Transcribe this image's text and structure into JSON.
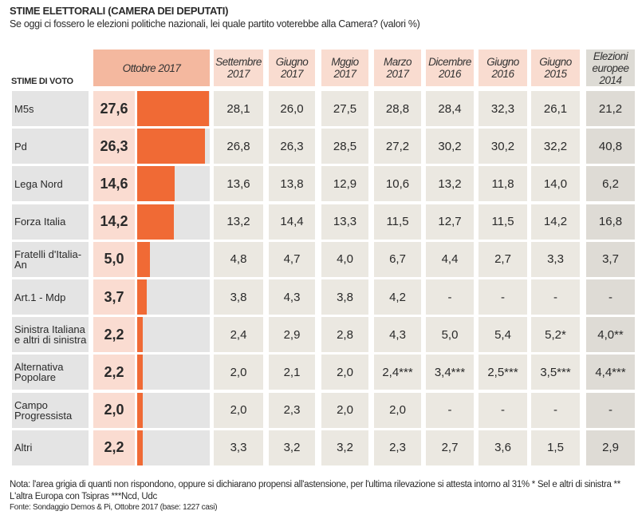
{
  "title": "STIME ELETTORALI (CAMERA DEI DEPUTATI)",
  "subtitle": "Se oggi ci fossero le elezioni politiche nazionali, lei quale partito voterebbe alla Camera? (valori %)",
  "row_header": "STIME DI VOTO",
  "chart_data": {
    "type": "table",
    "bar_color": "#f06a35",
    "columns": [
      "Ottobre 2017",
      "Settembre 2017",
      "Giugno 2017",
      "Mggio 2017",
      "Marzo 2017",
      "Dicembre 2016",
      "Giugno 2016",
      "Giugno 2015",
      "Elezioni europee 2014"
    ],
    "rows": [
      {
        "party": "M5s",
        "values": [
          "27,6",
          "28,1",
          "26,0",
          "27,5",
          "28,8",
          "28,4",
          "32,3",
          "26,1",
          "21,2"
        ],
        "bar": 27.6
      },
      {
        "party": "Pd",
        "values": [
          "26,3",
          "26,8",
          "26,3",
          "28,5",
          "27,2",
          "30,2",
          "30,2",
          "32,2",
          "40,8"
        ],
        "bar": 26.3
      },
      {
        "party": "Lega Nord",
        "values": [
          "14,6",
          "13,6",
          "13,8",
          "12,9",
          "10,6",
          "13,2",
          "11,8",
          "14,0",
          "6,2"
        ],
        "bar": 14.6
      },
      {
        "party": "Forza Italia",
        "values": [
          "14,2",
          "13,2",
          "14,4",
          "13,3",
          "11,5",
          "12,7",
          "11,5",
          "14,2",
          "16,8"
        ],
        "bar": 14.2
      },
      {
        "party": "Fratelli d'Italia-An",
        "values": [
          "5,0",
          "4,8",
          "4,7",
          "4,0",
          "6,7",
          "4,4",
          "2,7",
          "3,3",
          "3,7"
        ],
        "bar": 5.0
      },
      {
        "party": "Art.1 - Mdp",
        "values": [
          "3,7",
          "3,8",
          "4,3",
          "3,8",
          "4,2",
          "-",
          "-",
          "-",
          "-"
        ],
        "bar": 3.7
      },
      {
        "party": "Sinistra Italiana e altri di sinistra",
        "values": [
          "2,2",
          "2,4",
          "2,9",
          "2,8",
          "4,3",
          "5,0",
          "5,4",
          "5,2*",
          "4,0**"
        ],
        "bar": 2.2
      },
      {
        "party": "Alternativa Popolare",
        "values": [
          "2,2",
          "2,0",
          "2,1",
          "2,0",
          "2,4***",
          "3,4***",
          "2,5***",
          "3,5***",
          "4,4***"
        ],
        "bar": 2.2
      },
      {
        "party": "Campo Progressista",
        "values": [
          "2,0",
          "2,0",
          "2,3",
          "2,0",
          "2,0",
          "-",
          "-",
          "-",
          "-"
        ],
        "bar": 2.0
      },
      {
        "party": "Altri",
        "values": [
          "2,2",
          "3,3",
          "3,2",
          "3,2",
          "2,3",
          "2,7",
          "3,6",
          "1,5",
          "2,9"
        ],
        "bar": 2.2
      }
    ]
  },
  "note": "Nota: l'area grigia di quanti non rispondono, oppure si dichiarano propensi all'astensione, per l'ultima rilevazione si attesta intorno al 31%    * Sel e altri di sinistra   ** L'altra Europa con Tsipras  ***Ncd, Udc",
  "source": "Fonte: Sondaggio Demos & Pi, Ottobre 2017 (base: 1227 casi)"
}
